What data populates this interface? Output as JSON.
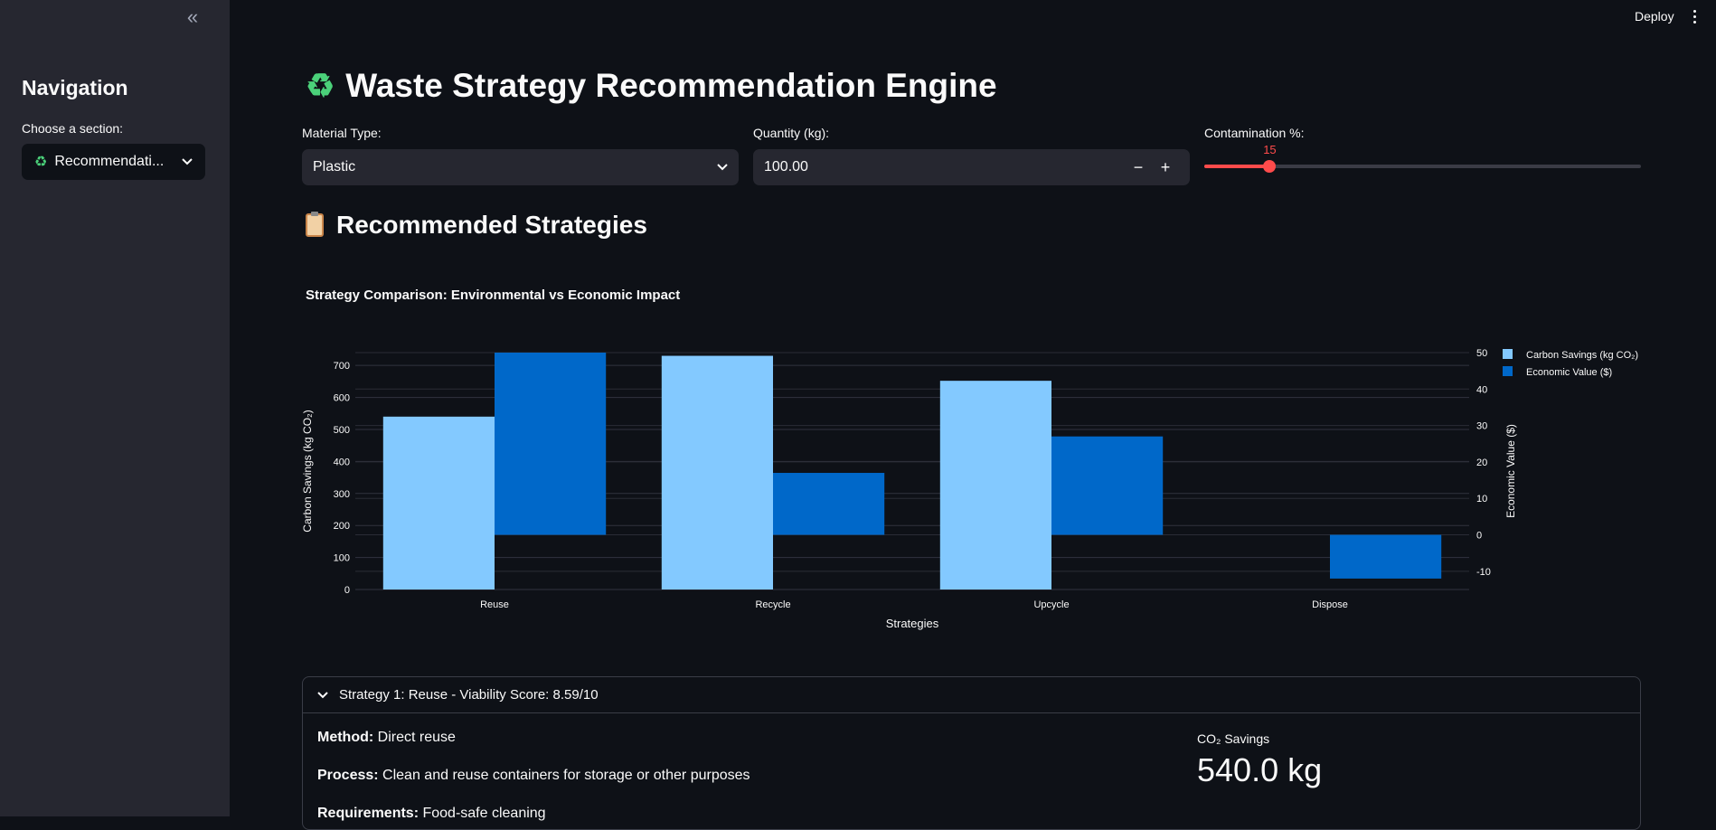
{
  "sidebar": {
    "collapse_glyph": "«",
    "title": "Navigation",
    "section_label": "Choose a section:",
    "section_value": "Recommendati...",
    "section_icon": "recycle-icon"
  },
  "header": {
    "deploy_label": "Deploy"
  },
  "main": {
    "title": "Waste Strategy Recommendation Engine",
    "title_icon": "recycle-icon",
    "material_label": "Material Type:",
    "material_value": "Plastic",
    "quantity_label": "Quantity (kg):",
    "quantity_value": "100.00",
    "minus_label": "−",
    "plus_label": "+",
    "contamination_label": "Contamination %:",
    "contamination_value": "15",
    "contamination_min": 0,
    "contamination_max": 100,
    "section_title": "Recommended Strategies",
    "chart_title": "Strategy Comparison: Environmental vs Economic Impact"
  },
  "colors": {
    "accent": "#ff4b4b",
    "carbon": "#83c9ff",
    "economic": "#0068c9"
  },
  "chart_data": {
    "type": "bar",
    "title": "Strategy Comparison: Environmental vs Economic Impact",
    "categories": [
      "Reuse",
      "Recycle",
      "Upcycle",
      "Dispose"
    ],
    "xlabel": "Strategies",
    "ylabel": "Carbon Savings (kg CO₂)",
    "y2label": "Economic Value ($)",
    "ylim": [
      0,
      740
    ],
    "y2lim": [
      -15,
      50
    ],
    "yticks": [
      0,
      100,
      200,
      300,
      400,
      500,
      600,
      700
    ],
    "y2ticks": [
      -10,
      0,
      10,
      20,
      30,
      40,
      50
    ],
    "series": [
      {
        "name": "Carbon Savings (kg CO₂)",
        "axis": "left",
        "values": [
          540,
          730,
          652,
          0
        ]
      },
      {
        "name": "Economic Value ($)",
        "axis": "right",
        "values": [
          50,
          17,
          27,
          -12
        ]
      }
    ],
    "legend": "top-right",
    "grid": true
  },
  "expander": {
    "title": "Strategy 1: Reuse - Viability Score: 8.59/10",
    "method_label": "Method:",
    "method_value": "Direct reuse",
    "process_label": "Process:",
    "process_value": "Clean and reuse containers for storage or other purposes",
    "requirements_label": "Requirements:",
    "requirements_value": "Food-safe cleaning",
    "metric_label": "CO₂ Savings",
    "metric_value": "540.0 kg"
  }
}
